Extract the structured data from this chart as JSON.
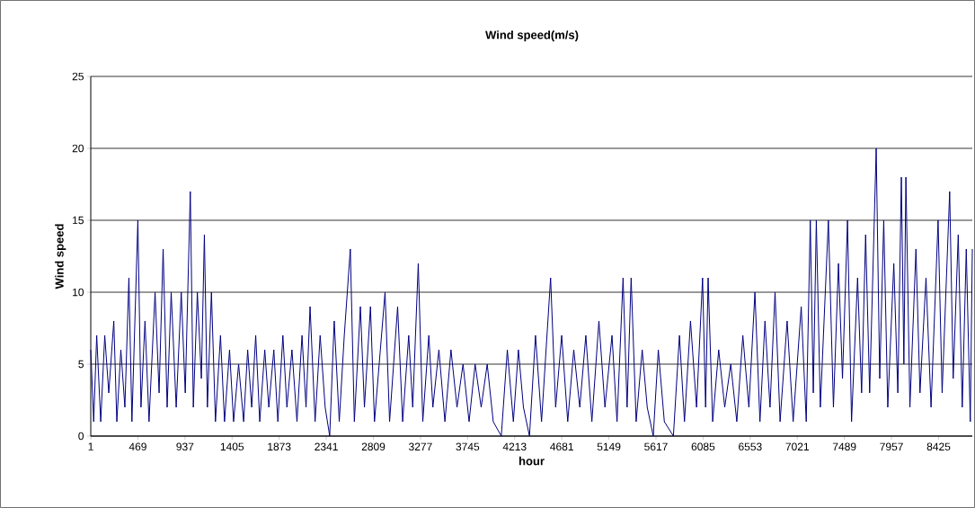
{
  "chart_data": {
    "type": "line",
    "title": "Wind speed(m/s)",
    "xlabel": "hour",
    "ylabel": "Wind speed",
    "x": [
      1,
      30,
      60,
      100,
      140,
      180,
      230,
      260,
      300,
      340,
      380,
      410,
      469,
      500,
      540,
      580,
      640,
      680,
      720,
      760,
      800,
      850,
      900,
      940,
      990,
      1020,
      1060,
      1100,
      1130,
      1160,
      1200,
      1240,
      1290,
      1330,
      1380,
      1420,
      1470,
      1520,
      1560,
      1600,
      1640,
      1680,
      1730,
      1770,
      1820,
      1860,
      1910,
      1950,
      2000,
      2050,
      2100,
      2140,
      2180,
      2230,
      2280,
      2330,
      2375,
      2420,
      2470,
      2520,
      2580,
      2620,
      2680,
      2720,
      2780,
      2820,
      2925,
      2970,
      3050,
      3100,
      3160,
      3200,
      3255,
      3300,
      3360,
      3400,
      3460,
      3520,
      3580,
      3640,
      3700,
      3760,
      3820,
      3880,
      3940,
      4000,
      4080,
      4140,
      4200,
      4250,
      4300,
      4360,
      4420,
      4480,
      4570,
      4620,
      4680,
      4740,
      4800,
      4860,
      4920,
      4980,
      5050,
      5110,
      5180,
      5230,
      5290,
      5330,
      5370,
      5420,
      5480,
      5530,
      5590,
      5640,
      5700,
      5790,
      5850,
      5900,
      5960,
      6020,
      6080,
      6110,
      6135,
      6180,
      6240,
      6300,
      6360,
      6420,
      6480,
      6540,
      6600,
      6650,
      6700,
      6750,
      6800,
      6850,
      6920,
      6980,
      7060,
      7110,
      7150,
      7180,
      7210,
      7250,
      7330,
      7380,
      7430,
      7470,
      7520,
      7560,
      7620,
      7660,
      7700,
      7740,
      7805,
      7840,
      7880,
      7920,
      7980,
      8020,
      8055,
      8080,
      8100,
      8140,
      8200,
      8240,
      8300,
      8350,
      8420,
      8460,
      8535,
      8570,
      8620,
      8660,
      8700,
      8740,
      8760
    ],
    "values": [
      6,
      1,
      7,
      1,
      7,
      3,
      8,
      1,
      6,
      2,
      11,
      1,
      15,
      2,
      8,
      1,
      10,
      3,
      13,
      2,
      10,
      2,
      10,
      3,
      17,
      2,
      10,
      4,
      14,
      2,
      10,
      1,
      7,
      1,
      6,
      1,
      5,
      1,
      6,
      2,
      7,
      1,
      6,
      2,
      6,
      1,
      7,
      2,
      6,
      1,
      7,
      2,
      9,
      1,
      7,
      2,
      0,
      8,
      1,
      7,
      13,
      1,
      9,
      2,
      9,
      1,
      10,
      1,
      9,
      1,
      7,
      2,
      12,
      1,
      7,
      2,
      6,
      1,
      6,
      2,
      5,
      1,
      5,
      2,
      5,
      1,
      0,
      6,
      1,
      6,
      2,
      0,
      7,
      1,
      11,
      2,
      7,
      1,
      6,
      2,
      7,
      1,
      8,
      2,
      7,
      1,
      11,
      2,
      11,
      1,
      6,
      2,
      0,
      6,
      1,
      0,
      7,
      1,
      8,
      2,
      11,
      2,
      11,
      1,
      6,
      2,
      5,
      1,
      7,
      2,
      10,
      1,
      8,
      2,
      10,
      1,
      8,
      1,
      9,
      1,
      15,
      3,
      15,
      2,
      15,
      2,
      12,
      4,
      15,
      1,
      11,
      3,
      14,
      3,
      20,
      4,
      15,
      2,
      12,
      3,
      18,
      5,
      18,
      2,
      13,
      3,
      11,
      2,
      15,
      3,
      17,
      4,
      14,
      2,
      13,
      1,
      13
    ],
    "color": "#000080",
    "xlim": [
      1,
      8760
    ],
    "xticks": [
      1,
      469,
      937,
      1405,
      1873,
      2341,
      2809,
      3277,
      3745,
      4213,
      4681,
      5149,
      5617,
      6085,
      6553,
      7021,
      7489,
      7957,
      8425
    ],
    "ylim": [
      0,
      25
    ],
    "yticks": [
      0,
      5,
      10,
      15,
      20,
      25
    ],
    "grid": "y",
    "marker": "none",
    "line_style": "solid"
  }
}
